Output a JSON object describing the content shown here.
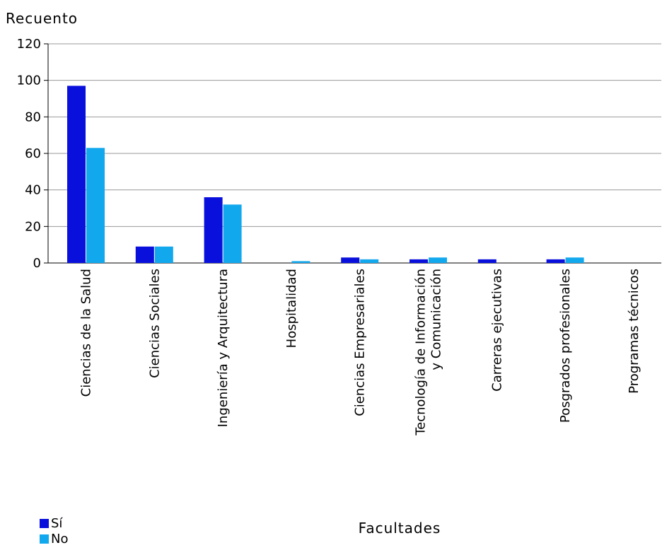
{
  "chart_data": {
    "type": "bar",
    "title": "",
    "ylabel": "Recuento",
    "xlabel": "Facultades",
    "ylim": [
      0,
      120
    ],
    "yticks": [
      0,
      20,
      40,
      60,
      80,
      100,
      120
    ],
    "grid": true,
    "legend_position": "bottom-left",
    "categories": [
      [
        "Ciencias de la Salud"
      ],
      [
        "Ciencias Sociales"
      ],
      [
        "Ingeniería y Arquitectura"
      ],
      [
        "Hospitalidad"
      ],
      [
        "Ciencias Empresariales"
      ],
      [
        "Tecnología de Información",
        "y Comunicación"
      ],
      [
        "Carreras ejecutivas"
      ],
      [
        "Posgrados profesionales"
      ],
      [
        "Programas técnicos"
      ]
    ],
    "series": [
      {
        "name": "Sí",
        "color": "#0a10dc",
        "values": [
          97,
          9,
          36,
          0,
          3,
          2,
          2,
          2,
          0
        ]
      },
      {
        "name": "No",
        "color": "#12a8ee",
        "values": [
          63,
          9,
          32,
          1,
          2,
          3,
          0,
          3,
          0
        ]
      }
    ]
  }
}
